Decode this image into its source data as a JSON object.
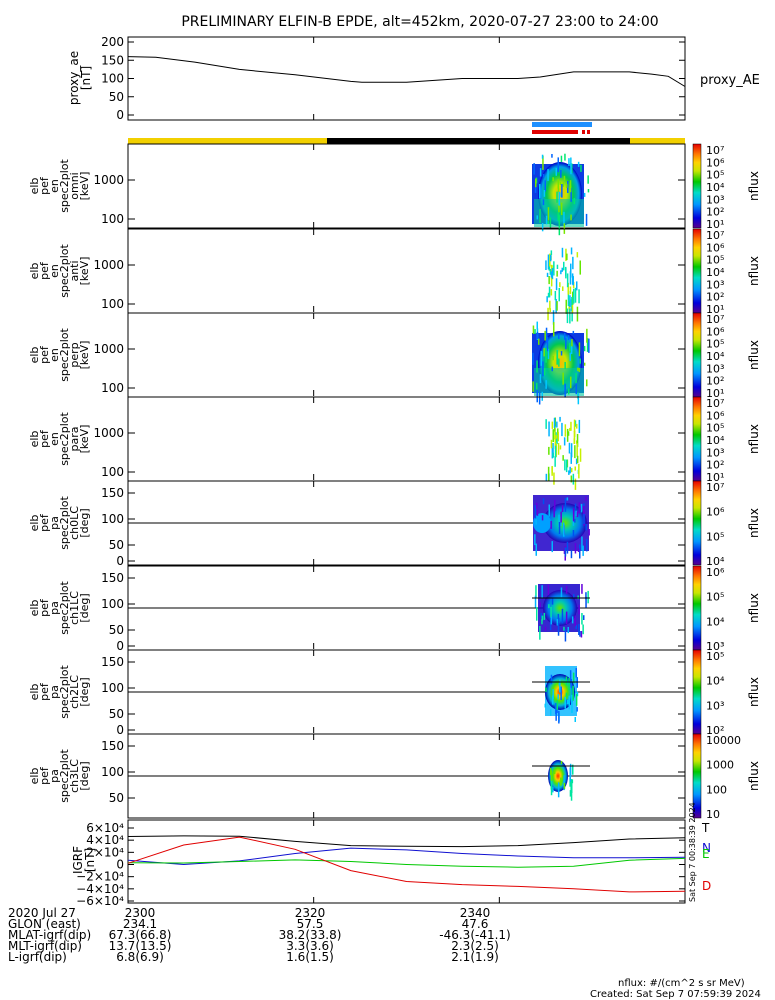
{
  "title": "PRELIMINARY ELFIN-B EPDE, alt=452km, 2020-07-27 23:00 to 24:00",
  "proxy_ae": {
    "ylabel_lines": [
      "proxy_ae",
      "[nT]"
    ],
    "legend": "proxy_AE",
    "ylim": [
      0,
      200
    ],
    "ticks": [
      0,
      50,
      100,
      150,
      200
    ],
    "x": [
      0,
      0.05,
      0.12,
      0.2,
      0.3,
      0.4,
      0.42,
      0.5,
      0.6,
      0.7,
      0.74,
      0.8,
      0.9,
      0.94,
      0.97,
      1.0
    ],
    "y": [
      160,
      158,
      145,
      125,
      110,
      92,
      90,
      90,
      100,
      100,
      104,
      118,
      118,
      112,
      106,
      78
    ]
  },
  "spec_panels": [
    {
      "ylabel_lines": [
        "elb",
        "pef",
        "en",
        "spec2plot",
        "omni",
        "[keV]"
      ],
      "ticks": [
        "1000",
        "100"
      ],
      "cbar_label": "nflux",
      "cbar_ticks": [
        "10⁷",
        "10⁶",
        "10⁵",
        "10⁴",
        "10³",
        "10²",
        "10¹"
      ]
    },
    {
      "ylabel_lines": [
        "elb",
        "pef",
        "en",
        "spec2plot",
        "anti",
        "[keV]"
      ],
      "ticks": [
        "1000",
        "100"
      ],
      "cbar_label": "nflux",
      "cbar_ticks": [
        "10⁷",
        "10⁶",
        "10⁵",
        "10⁴",
        "10³",
        "10²",
        "10¹"
      ]
    },
    {
      "ylabel_lines": [
        "elb",
        "pef",
        "en",
        "spec2plot",
        "perp",
        "[keV]"
      ],
      "ticks": [
        "1000",
        "100"
      ],
      "cbar_label": "nflux",
      "cbar_ticks": [
        "10⁷",
        "10⁶",
        "10⁵",
        "10⁴",
        "10³",
        "10²",
        "10¹"
      ]
    },
    {
      "ylabel_lines": [
        "elb",
        "pef",
        "en",
        "spec2plot",
        "para",
        "[keV]"
      ],
      "ticks": [
        "1000",
        "100"
      ],
      "cbar_label": "nflux",
      "cbar_ticks": [
        "10⁷",
        "10⁶",
        "10⁵",
        "10⁴",
        "10³",
        "10²",
        "10¹"
      ]
    }
  ],
  "pa_panels": [
    {
      "ylabel_lines": [
        "elb",
        "pef",
        "pa",
        "spec2plot",
        "ch0LC",
        "[deg]"
      ],
      "ticks": [
        "150",
        "100",
        "50",
        "0"
      ],
      "cbar_label": "nflux",
      "cbar_ticks": [
        "10⁷",
        "10⁶",
        "10⁵",
        "10⁴"
      ]
    },
    {
      "ylabel_lines": [
        "elb",
        "pef",
        "pa",
        "spec2plot",
        "ch1LC",
        "[deg]"
      ],
      "ticks": [
        "150",
        "100",
        "50",
        "0"
      ],
      "cbar_label": "nflux",
      "cbar_ticks": [
        "10⁶",
        "10⁵",
        "10⁴",
        "10³"
      ]
    },
    {
      "ylabel_lines": [
        "elb",
        "pef",
        "pa",
        "spec2plot",
        "ch2LC",
        "[deg]"
      ],
      "ticks": [
        "150",
        "100",
        "50",
        "0"
      ],
      "cbar_label": "nflux",
      "cbar_ticks": [
        "10⁵",
        "10⁴",
        "10³",
        "10²"
      ]
    },
    {
      "ylabel_lines": [
        "elb",
        "pef",
        "pa",
        "spec2plot",
        "ch3LC",
        "[deg]"
      ],
      "ticks": [
        "150",
        "100",
        "50"
      ],
      "cbar_label": "nflux",
      "cbar_ticks": [
        "10000",
        "1000",
        "100",
        "10"
      ]
    }
  ],
  "igrf": {
    "ylabel_lines": [
      "IGRF",
      "[nT]"
    ],
    "ylim": [
      -60000,
      60000
    ],
    "ticks": [
      "6×10⁴",
      "4×10⁴",
      "2×10⁴",
      "0",
      "−2×10⁴",
      "−4×10⁴",
      "−6×10⁴"
    ],
    "tick_values": [
      60000,
      40000,
      20000,
      0,
      -20000,
      -40000,
      -60000
    ],
    "x": [
      0,
      0.1,
      0.2,
      0.3,
      0.4,
      0.5,
      0.6,
      0.7,
      0.8,
      0.9,
      1.0
    ],
    "series": [
      {
        "name": "T",
        "color": "#000000",
        "values": [
          46000,
          47000,
          46500,
          38000,
          31000,
          30000,
          29500,
          31000,
          36000,
          42000,
          44000
        ]
      },
      {
        "name": "N",
        "color": "#1010d0",
        "values": [
          7000,
          0,
          6000,
          18000,
          27000,
          24000,
          18000,
          14000,
          11000,
          11000,
          12000
        ]
      },
      {
        "name": "E",
        "color": "#00c800",
        "values": [
          3000,
          2500,
          5000,
          7500,
          5000,
          0,
          -3000,
          -4500,
          -3000,
          7000,
          10000
        ]
      },
      {
        "name": "D",
        "color": "#e00000",
        "values": [
          2000,
          32000,
          45000,
          25000,
          -10000,
          -28000,
          -33000,
          -36000,
          -40000,
          -45000,
          -44000
        ]
      }
    ],
    "legend": [
      "T",
      "N",
      "E",
      "D"
    ]
  },
  "side_note": "Sat Sep  7 00:38:39 2024",
  "status_bars": {
    "colors": {
      "yellow": "#f2d000",
      "black": "#000000",
      "blue": "#1e90ff",
      "red": "#e00000"
    }
  },
  "x_axis": {
    "tick_labels": [
      "2300",
      "2320",
      "2340"
    ],
    "rows": [
      {
        "label": "2020 Jul 27",
        "values": [
          "2300",
          "2320",
          "2340"
        ]
      },
      {
        "label": "GLON (east)",
        "values": [
          "234.1",
          "57.5",
          "47.6"
        ]
      },
      {
        "label": "MLAT-igrf(dip)",
        "values": [
          "67.3(66.8)",
          "38.2(33.8)",
          "-46.3(-41.1)"
        ]
      },
      {
        "label": "MLT-igrf(dip)",
        "values": [
          "13.7(13.5)",
          "3.3(3.6)",
          "2.3(2.5)"
        ]
      },
      {
        "label": "L-igrf(dip)",
        "values": [
          "6.8(6.9)",
          "1.6(1.5)",
          "2.1(1.9)"
        ]
      }
    ]
  },
  "units_note": "nflux: #/(cm^2 s sr MeV)",
  "created_note": "Created: Sat Sep  7 07:59:39 2024",
  "chart_data": [
    {
      "type": "line",
      "title": "PRELIMINARY ELFIN-B EPDE, alt=452km, 2020-07-27 23:00 to 24:00",
      "ylabel": "proxy_ae [nT]",
      "ylim": [
        0,
        200
      ],
      "legend": [
        "proxy_AE"
      ]
    },
    {
      "type": "heatmap",
      "ylabel": "elb pef en spec2plot omni [keV]",
      "colorbar": "nflux"
    },
    {
      "type": "heatmap",
      "ylabel": "elb pef en spec2plot anti [keV]",
      "colorbar": "nflux"
    },
    {
      "type": "heatmap",
      "ylabel": "elb pef en spec2plot perp [keV]",
      "colorbar": "nflux"
    },
    {
      "type": "heatmap",
      "ylabel": "elb pef en spec2plot para [keV]",
      "colorbar": "nflux"
    },
    {
      "type": "heatmap",
      "ylabel": "elb pef pa spec2plot ch0LC [deg]",
      "ylim": [
        0,
        180
      ],
      "colorbar": "nflux"
    },
    {
      "type": "heatmap",
      "ylabel": "elb pef pa spec2plot ch1LC [deg]",
      "ylim": [
        0,
        180
      ],
      "colorbar": "nflux"
    },
    {
      "type": "heatmap",
      "ylabel": "elb pef pa spec2plot ch2LC [deg]",
      "ylim": [
        0,
        180
      ],
      "colorbar": "nflux"
    },
    {
      "type": "heatmap",
      "ylabel": "elb pef pa spec2plot ch3LC [deg]",
      "ylim": [
        0,
        180
      ],
      "colorbar": "nflux"
    },
    {
      "type": "line",
      "ylabel": "IGRF [nT]",
      "ylim": [
        -60000,
        60000
      ],
      "legend": [
        "T",
        "N",
        "E",
        "D"
      ]
    }
  ]
}
